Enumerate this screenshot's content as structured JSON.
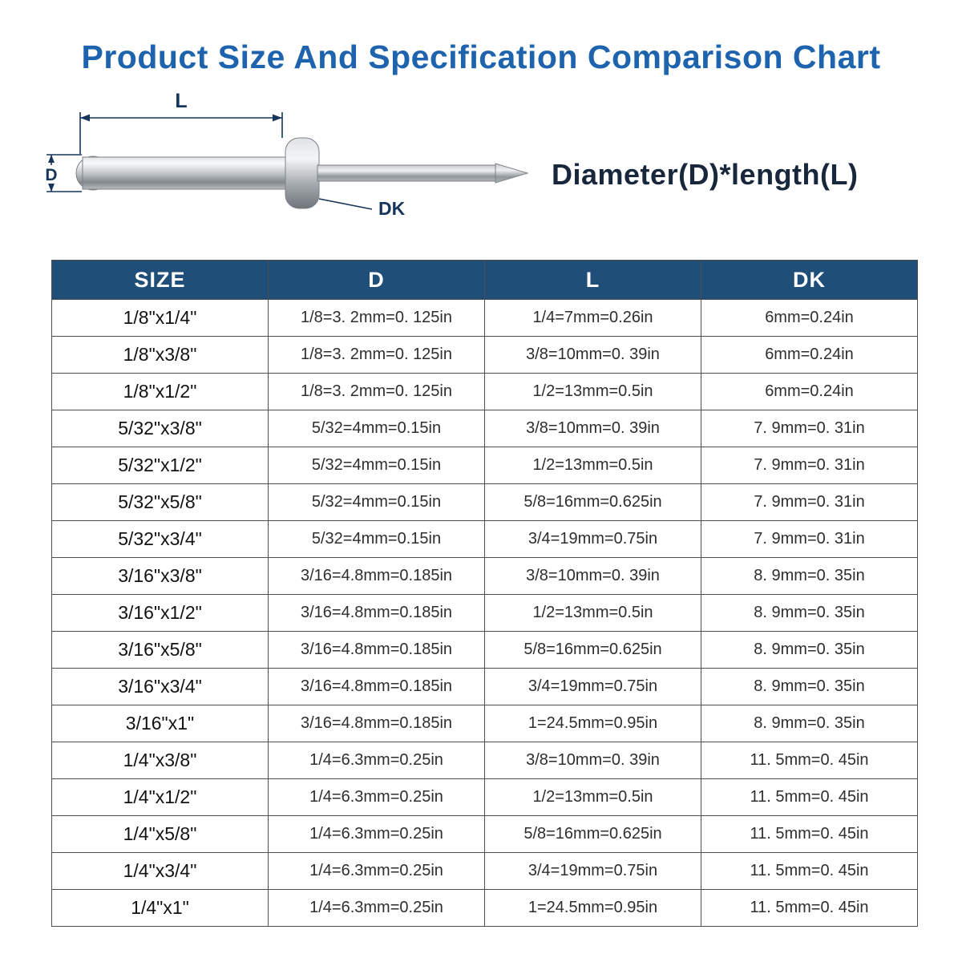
{
  "page": {
    "title": "Product Size And Specification Comparison Chart",
    "formula": "Diameter(D)*length(L)"
  },
  "diagram": {
    "length_label": "L",
    "diameter_label": "D",
    "head_diameter_label": "DK"
  },
  "colors": {
    "title_blue": "#1d63ae",
    "header_navy": "#1f4e79",
    "dimension_navy": "#16355a",
    "formula_dark_navy": "#18273c",
    "table_border": "#4f4f4f"
  },
  "chart_data": {
    "type": "table",
    "title": "Product Size And Specification Comparison Chart",
    "columns": [
      "SIZE",
      "D",
      "L",
      "DK"
    ],
    "rows": [
      [
        "1/8\"x1/4\"",
        "1/8=3. 2mm=0. 125in",
        "1/4=7mm=0.26in",
        "6mm=0.24in"
      ],
      [
        "1/8\"x3/8\"",
        "1/8=3. 2mm=0. 125in",
        "3/8=10mm=0. 39in",
        "6mm=0.24in"
      ],
      [
        "1/8\"x1/2\"",
        "1/8=3. 2mm=0. 125in",
        "1/2=13mm=0.5in",
        "6mm=0.24in"
      ],
      [
        "5/32\"x3/8\"",
        "5/32=4mm=0.15in",
        "3/8=10mm=0. 39in",
        "7. 9mm=0. 31in"
      ],
      [
        "5/32\"x1/2\"",
        "5/32=4mm=0.15in",
        "1/2=13mm=0.5in",
        "7. 9mm=0. 31in"
      ],
      [
        "5/32\"x5/8\"",
        "5/32=4mm=0.15in",
        "5/8=16mm=0.625in",
        "7. 9mm=0. 31in"
      ],
      [
        "5/32\"x3/4\"",
        "5/32=4mm=0.15in",
        "3/4=19mm=0.75in",
        "7. 9mm=0. 31in"
      ],
      [
        "3/16\"x3/8\"",
        "3/16=4.8mm=0.185in",
        "3/8=10mm=0. 39in",
        "8. 9mm=0. 35in"
      ],
      [
        "3/16\"x1/2\"",
        "3/16=4.8mm=0.185in",
        "1/2=13mm=0.5in",
        "8. 9mm=0. 35in"
      ],
      [
        "3/16\"x5/8\"",
        "3/16=4.8mm=0.185in",
        "5/8=16mm=0.625in",
        "8. 9mm=0. 35in"
      ],
      [
        "3/16\"x3/4\"",
        "3/16=4.8mm=0.185in",
        "3/4=19mm=0.75in",
        "8. 9mm=0. 35in"
      ],
      [
        "3/16\"x1\"",
        "3/16=4.8mm=0.185in",
        "1=24.5mm=0.95in",
        "8. 9mm=0. 35in"
      ],
      [
        "1/4\"x3/8\"",
        "1/4=6.3mm=0.25in",
        "3/8=10mm=0. 39in",
        "11. 5mm=0. 45in"
      ],
      [
        "1/4\"x1/2\"",
        "1/4=6.3mm=0.25in",
        "1/2=13mm=0.5in",
        "11. 5mm=0. 45in"
      ],
      [
        "1/4\"x5/8\"",
        "1/4=6.3mm=0.25in",
        "5/8=16mm=0.625in",
        "11. 5mm=0. 45in"
      ],
      [
        "1/4\"x3/4\"",
        "1/4=6.3mm=0.25in",
        "3/4=19mm=0.75in",
        "11. 5mm=0. 45in"
      ],
      [
        "1/4\"x1\"",
        "1/4=6.3mm=0.25in",
        "1=24.5mm=0.95in",
        "11. 5mm=0. 45in"
      ]
    ]
  }
}
